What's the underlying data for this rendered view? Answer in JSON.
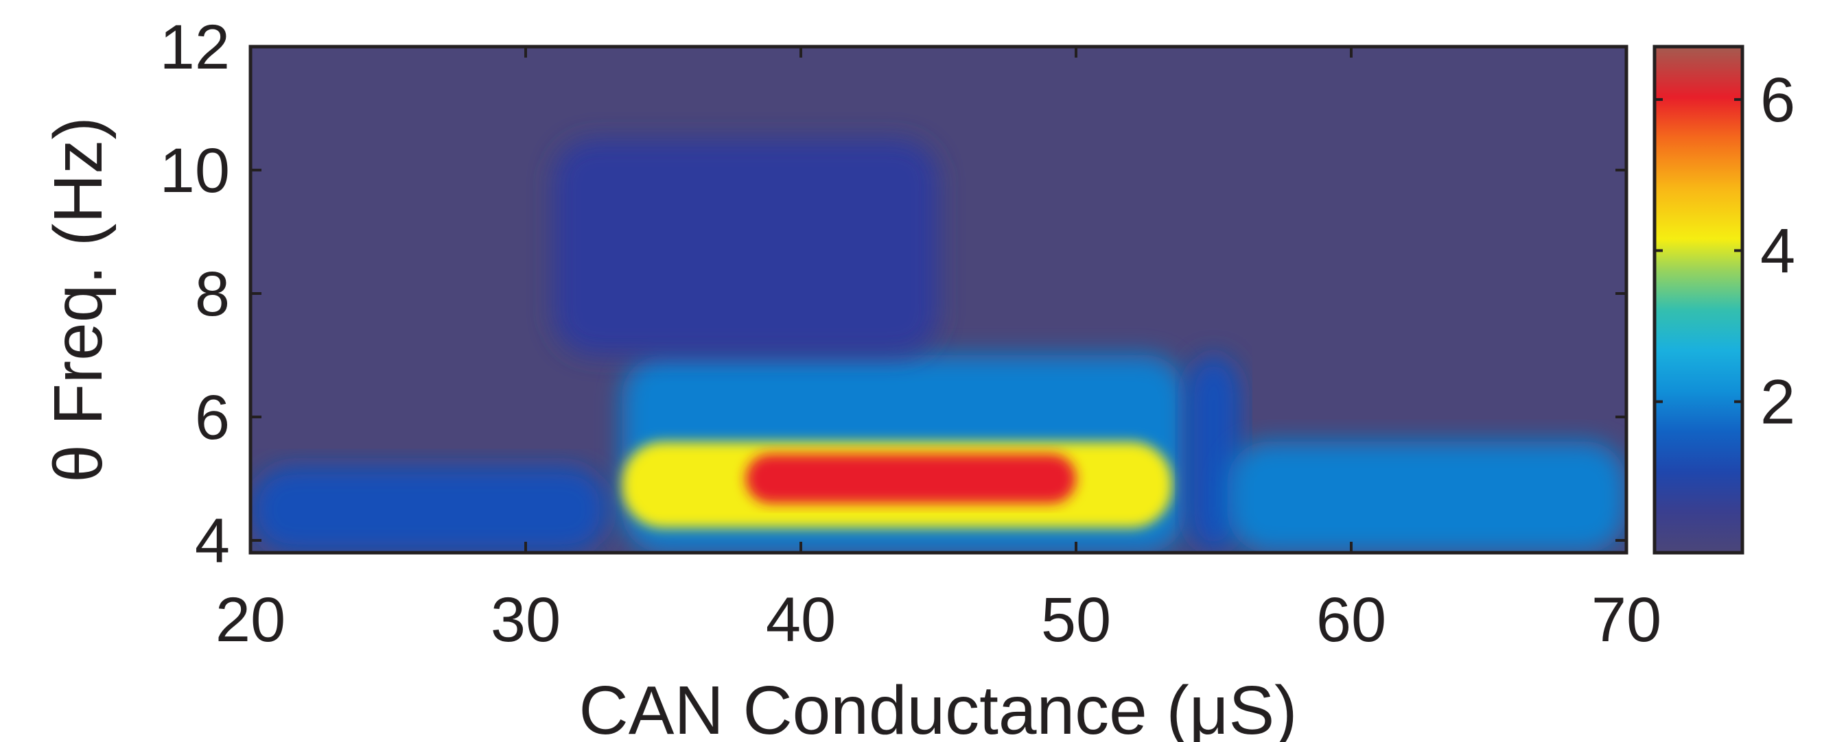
{
  "chart_data": {
    "type": "heatmap",
    "title": "",
    "xlabel": "CAN Conductance (μS)",
    "ylabel": "θ Freq. (Hz)",
    "xlim": [
      20,
      70
    ],
    "ylim": [
      3.8,
      12
    ],
    "x_ticks": [
      "20",
      "30",
      "40",
      "50",
      "60",
      "70"
    ],
    "y_ticks": [
      "4",
      "6",
      "8",
      "10",
      "12"
    ],
    "colorbar": {
      "range": [
        0,
        6.7
      ],
      "ticks": [
        "2",
        "4",
        "6"
      ],
      "colormap": [
        "#4b4679",
        "#2f3a9c",
        "#1550b8",
        "#0f7fd0",
        "#12a9e0",
        "#2bbfb2",
        "#8fd35a",
        "#f5ee12",
        "#f8b716",
        "#f46c1c",
        "#e81f2a",
        "#a8554a"
      ]
    },
    "grid": false,
    "features": [
      {
        "desc": "background",
        "value": 0.3
      },
      {
        "x_range": [
          20,
          33
        ],
        "y_range": [
          3.8,
          5.2
        ],
        "value": 1.0
      },
      {
        "x_range": [
          33.5,
          54
        ],
        "y_range": [
          3.8,
          7.0
        ],
        "value": 2.0
      },
      {
        "x_range": [
          33.5,
          53.5
        ],
        "y_range": [
          4.2,
          5.6
        ],
        "value": 4.5
      },
      {
        "x_range": [
          38,
          50
        ],
        "y_range": [
          4.6,
          5.4
        ],
        "value": 6.0
      },
      {
        "x_range": [
          54,
          56
        ],
        "y_range": [
          3.8,
          7.0
        ],
        "value": 1.5
      },
      {
        "x_range": [
          55.5,
          70
        ],
        "y_range": [
          3.8,
          5.6
        ],
        "value": 1.8
      },
      {
        "x_range": [
          31,
          45
        ],
        "y_range": [
          7.0,
          10.5
        ],
        "value": 0.6
      }
    ]
  }
}
